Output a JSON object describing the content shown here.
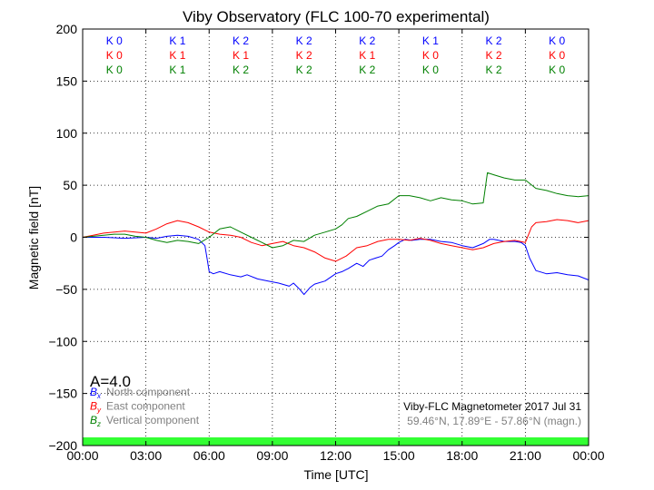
{
  "chart_data": {
    "type": "line",
    "title": "Viby Observatory (FLC 100-70 experimental)",
    "xlabel": "Time [UTC]",
    "ylabel": "Magnetic field [nT]",
    "xlim": [
      0,
      24
    ],
    "ylim": [
      -200,
      200
    ],
    "x_ticks": [
      "00:00",
      "03:00",
      "06:00",
      "09:00",
      "12:00",
      "15:00",
      "18:00",
      "21:00",
      "00:00"
    ],
    "y_ticks": [
      "200",
      "150",
      "100",
      "50",
      "0",
      "−50",
      "−100",
      "−150",
      "−200"
    ],
    "y_tick_values": [
      200,
      150,
      100,
      50,
      0,
      -50,
      -100,
      -150,
      -200
    ],
    "grid": true,
    "k_indices": {
      "x_centers": [
        1.5,
        4.5,
        7.5,
        10.5,
        13.5,
        16.5,
        19.5,
        22.5
      ],
      "rows": [
        {
          "color": "#0000ff",
          "labels": [
            "K 0",
            "K 1",
            "K 2",
            "K 2",
            "K 2",
            "K 1",
            "K 2",
            "K 0"
          ]
        },
        {
          "color": "#ff0000",
          "labels": [
            "K 0",
            "K 1",
            "K 1",
            "K 2",
            "K 1",
            "K 0",
            "K 2",
            "K 0"
          ]
        },
        {
          "color": "#008000",
          "labels": [
            "K 0",
            "K 1",
            "K 2",
            "K 2",
            "K 2",
            "K 0",
            "K 2",
            "K 0"
          ]
        }
      ]
    },
    "a_index": "A=4.0",
    "legend": {
      "placement": "bottom-left",
      "entries": [
        {
          "symbol": "B",
          "sub": "x",
          "label": "North component",
          "color": "#0000ff"
        },
        {
          "symbol": "B",
          "sub": "y",
          "label": "East component",
          "color": "#ff0000"
        },
        {
          "symbol": "B",
          "sub": "z",
          "label": "Vertical component",
          "color": "#008000"
        }
      ]
    },
    "info_line1": "Viby-FLC Magnetometer 2017 Jul 31",
    "info_line2": "59.46°N, 17.89°E - 57.86°N (magn.)",
    "status_bar_color": "#33ff33",
    "series": [
      {
        "name": "North component",
        "color": "#0000ff",
        "x": [
          0,
          1,
          2,
          3,
          3.5,
          4,
          4.5,
          5,
          5.5,
          5.8,
          5.9,
          6.0,
          6.2,
          6.5,
          7,
          7.5,
          7.8,
          8.3,
          8.8,
          9.3,
          9.8,
          10.0,
          10.3,
          10.5,
          10.8,
          11.0,
          11.5,
          12.0,
          12.3,
          12.6,
          13.0,
          13.3,
          13.6,
          13.9,
          14.2,
          14.5,
          14.8,
          15.0,
          15.3,
          15.6,
          16.0,
          16.5,
          17.0,
          17.5,
          18.0,
          18.5,
          19.0,
          19.3,
          19.5,
          20.0,
          20.5,
          20.8,
          21.0,
          21.2,
          21.5,
          22.0,
          22.5,
          23.0,
          23.5,
          24.0
        ],
        "y": [
          0,
          0,
          -1,
          0,
          -1,
          1,
          2,
          1,
          -2,
          -8,
          -20,
          -33,
          -35,
          -33,
          -36,
          -38,
          -36,
          -40,
          -42,
          -44,
          -47,
          -44,
          -50,
          -55,
          -48,
          -45,
          -42,
          -35,
          -33,
          -30,
          -25,
          -28,
          -22,
          -20,
          -18,
          -12,
          -8,
          -5,
          -2,
          -3,
          -2,
          -2,
          -4,
          -5,
          -8,
          -10,
          -6,
          -2,
          -2,
          -4,
          -4,
          -5,
          -8,
          -20,
          -32,
          -35,
          -34,
          -36,
          -37,
          -41
        ]
      },
      {
        "name": "East component",
        "color": "#ff0000",
        "x": [
          0,
          0.5,
          1,
          1.5,
          2,
          2.5,
          3,
          3.5,
          4,
          4.5,
          5,
          5.5,
          6,
          6.5,
          7,
          7.5,
          8,
          8.5,
          9,
          9.5,
          10,
          10.5,
          11,
          11.5,
          12,
          12.5,
          13,
          13.5,
          14,
          14.5,
          15,
          15.5,
          16,
          16.5,
          17,
          17.5,
          18,
          18.5,
          19,
          19.5,
          20,
          20.5,
          21,
          21.3,
          21.5,
          22,
          22.5,
          23,
          23.5,
          24
        ],
        "y": [
          0,
          2,
          4,
          5,
          6,
          5,
          4,
          8,
          13,
          16,
          14,
          10,
          5,
          3,
          2,
          0,
          -5,
          -8,
          -6,
          -4,
          -8,
          -10,
          -14,
          -20,
          -23,
          -18,
          -10,
          -8,
          -4,
          -2,
          -2,
          -3,
          -1,
          -3,
          -6,
          -8,
          -10,
          -12,
          -10,
          -6,
          -4,
          -3,
          -5,
          10,
          14,
          15,
          17,
          16,
          14,
          16
        ]
      },
      {
        "name": "Vertical component",
        "color": "#008000",
        "x": [
          0,
          0.5,
          1,
          1.5,
          2,
          2.5,
          3,
          3.5,
          4,
          4.5,
          5,
          5.5,
          6,
          6.5,
          7,
          7.5,
          8,
          8.5,
          9,
          9.5,
          10,
          10.5,
          11,
          11.5,
          12,
          12.3,
          12.6,
          13,
          13.5,
          14,
          14.5,
          15,
          15.5,
          16,
          16.5,
          17,
          17.5,
          18,
          18.5,
          19,
          19.2,
          19.5,
          20,
          20.5,
          21,
          21.5,
          22,
          22.5,
          23,
          23.5,
          24
        ],
        "y": [
          0,
          1,
          2,
          3,
          3,
          1,
          0,
          -3,
          -5,
          -3,
          -4,
          -6,
          0,
          8,
          10,
          5,
          0,
          -5,
          -10,
          -8,
          -3,
          -4,
          2,
          5,
          8,
          12,
          18,
          20,
          25,
          30,
          32,
          40,
          40,
          38,
          35,
          38,
          36,
          35,
          32,
          33,
          62,
          60,
          57,
          55,
          55,
          47,
          45,
          42,
          40,
          39,
          40
        ]
      }
    ]
  }
}
